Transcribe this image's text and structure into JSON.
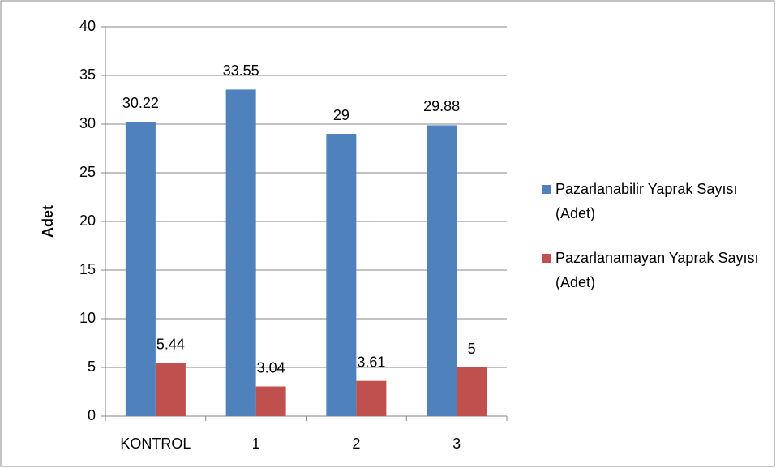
{
  "chart_data": {
    "type": "bar",
    "y_label": "Adet",
    "categories": [
      "KONTROL",
      "1",
      "2",
      "3"
    ],
    "series": [
      {
        "name": "Pazarlanabilir Yaprak Sayısı (Adet)",
        "color": "#4f81bd",
        "values": [
          30.22,
          33.55,
          29,
          29.88
        ]
      },
      {
        "name": "Pazarlanamayan Yaprak Sayısı (Adet)",
        "color": "#c0504d",
        "values": [
          5.44,
          3.04,
          3.61,
          5
        ]
      }
    ],
    "ylim": [
      0,
      40
    ],
    "yticks": [
      0,
      5,
      10,
      15,
      20,
      25,
      30,
      35,
      40
    ],
    "grid": true,
    "legend": "right"
  }
}
